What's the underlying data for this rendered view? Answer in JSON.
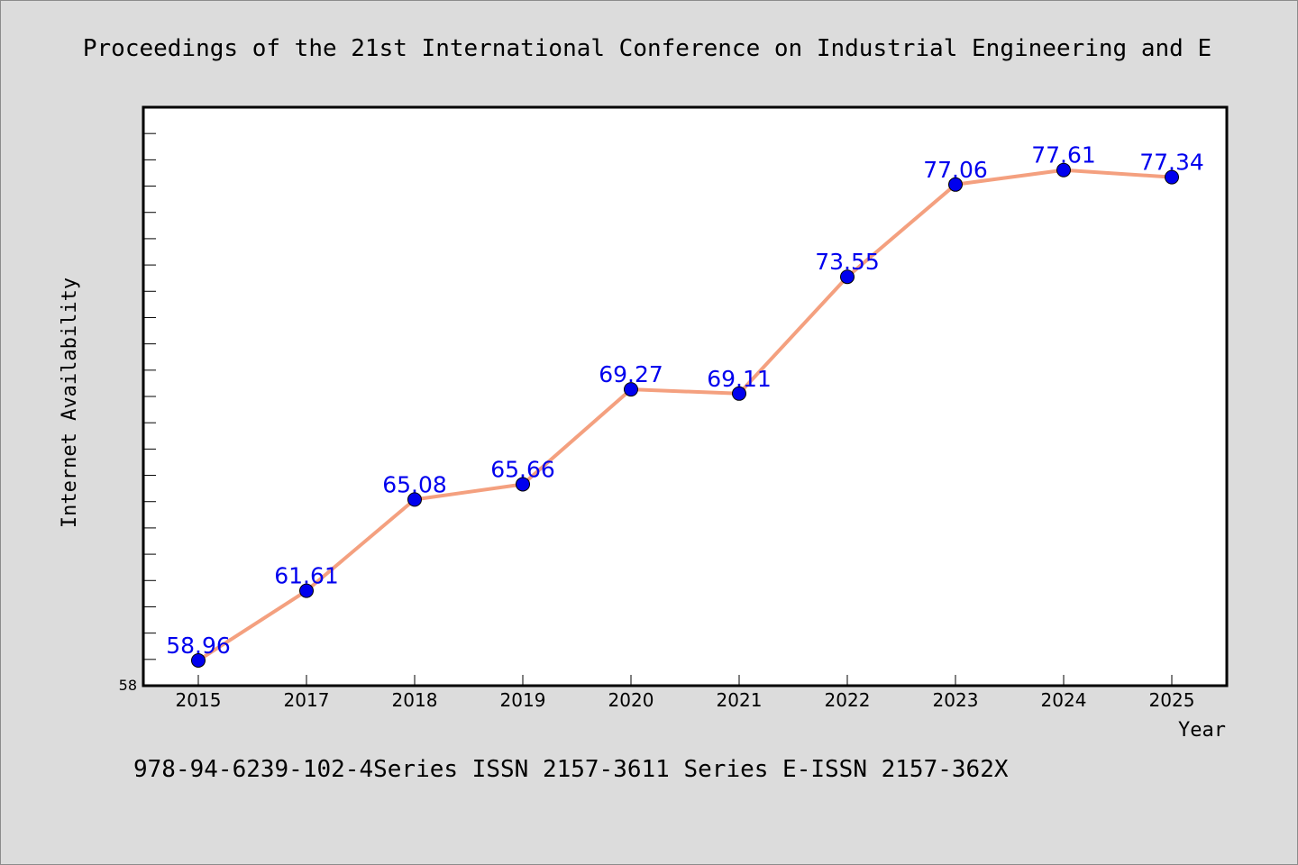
{
  "chart_data": {
    "type": "line",
    "title": "Proceedings of the 21st International Conference on Industrial Engineering and E",
    "footer": "978-94-6239-102-4Series ISSN 2157-3611 Series E-ISSN 2157-362X",
    "xlabel": "Year",
    "ylabel": "Internet Availability",
    "categories": [
      "2015",
      "2017",
      "2018",
      "2019",
      "2020",
      "2021",
      "2022",
      "2023",
      "2024",
      "2025"
    ],
    "series": [
      {
        "values": [
          58.96,
          61.61,
          65.08,
          65.66,
          69.27,
          69.11,
          73.55,
          77.06,
          77.61,
          77.34
        ],
        "labels": [
          "58.96",
          "61.61",
          "65.08",
          "65.66",
          "69.27",
          "69.11",
          "73.55",
          "77.06",
          "77.61",
          "77.34"
        ],
        "line_color": "#f4a07f",
        "marker_color": "#0000ee",
        "label_color": "#0000ee"
      }
    ],
    "ylim": [
      58,
      80
    ],
    "yticklabels": [
      "58"
    ],
    "y_minor_tick_step": 1,
    "grid": false,
    "legend": "none"
  }
}
